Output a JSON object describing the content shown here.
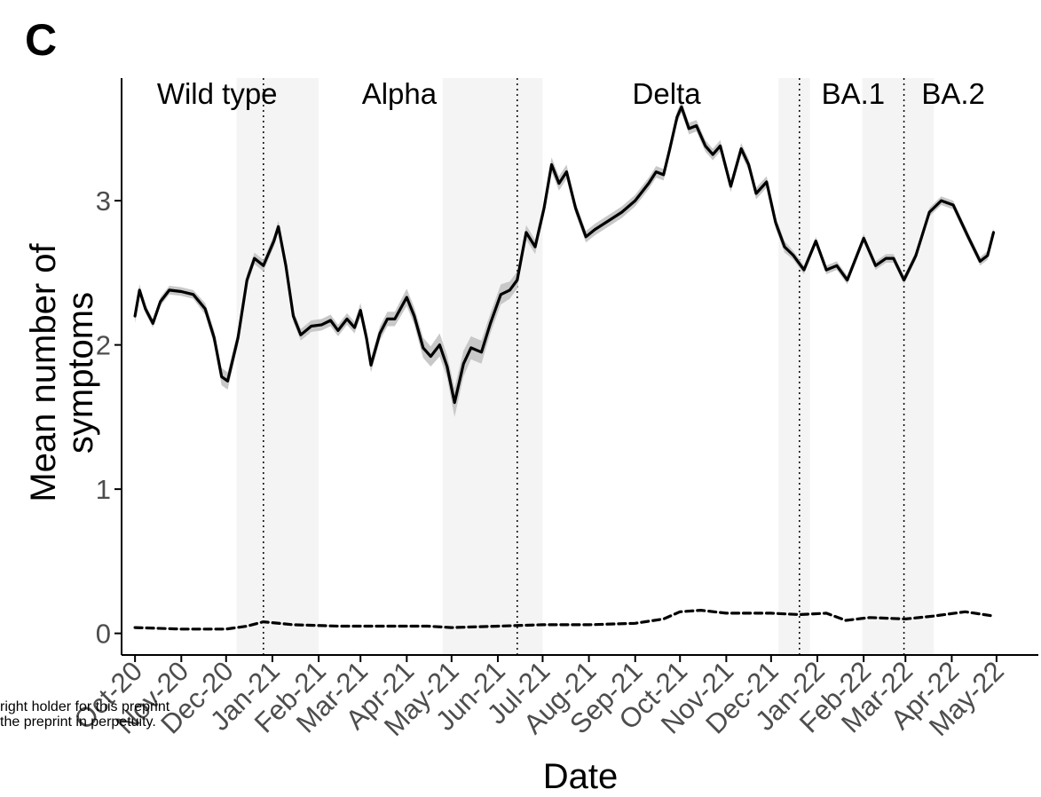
{
  "panel_label": "C",
  "watermark": [
    "right holder for this preprint",
    "the preprint in perpetuity."
  ],
  "chart_data": {
    "type": "line",
    "title": "",
    "xlabel": "Date",
    "ylabel": "Mean number of symptoms",
    "ylabel_lines": [
      "Mean number of",
      "symptoms"
    ],
    "x_axis": "date",
    "xlim": [
      "2020-09-22",
      "2022-05-29"
    ],
    "ylim": [
      -0.15,
      3.85
    ],
    "yticks": [
      0,
      1,
      2,
      3
    ],
    "xticks": [
      {
        "date": "2020-10-01",
        "label": "Oct-20"
      },
      {
        "date": "2020-11-01",
        "label": "Nov-20"
      },
      {
        "date": "2020-12-01",
        "label": "Dec-20"
      },
      {
        "date": "2021-01-01",
        "label": "Jan-21"
      },
      {
        "date": "2021-02-01",
        "label": "Feb-21"
      },
      {
        "date": "2021-03-01",
        "label": "Mar-21"
      },
      {
        "date": "2021-04-01",
        "label": "Apr-21"
      },
      {
        "date": "2021-05-01",
        "label": "May-21"
      },
      {
        "date": "2021-06-01",
        "label": "Jun-21"
      },
      {
        "date": "2021-07-01",
        "label": "Jul-21"
      },
      {
        "date": "2021-08-01",
        "label": "Aug-21"
      },
      {
        "date": "2021-09-01",
        "label": "Sep-21"
      },
      {
        "date": "2021-10-01",
        "label": "Oct-21"
      },
      {
        "date": "2021-11-01",
        "label": "Nov-21"
      },
      {
        "date": "2021-12-01",
        "label": "Dec-21"
      },
      {
        "date": "2022-01-01",
        "label": "Jan-22"
      },
      {
        "date": "2022-02-01",
        "label": "Feb-22"
      },
      {
        "date": "2022-03-01",
        "label": "Mar-22"
      },
      {
        "date": "2022-04-01",
        "label": "Apr-22"
      },
      {
        "date": "2022-05-01",
        "label": "May-22"
      }
    ],
    "grid": false,
    "variant_labels": [
      {
        "label": "Wild type",
        "date": "2020-11-25"
      },
      {
        "label": "Alpha",
        "date": "2021-03-27"
      },
      {
        "label": "Delta",
        "date": "2021-09-22"
      },
      {
        "label": "BA.1",
        "date": "2022-01-25"
      },
      {
        "label": "BA.2",
        "date": "2022-04-02"
      }
    ],
    "shaded_periods": [
      {
        "start": "2020-12-08",
        "end": "2021-02-01"
      },
      {
        "start": "2021-04-25",
        "end": "2021-07-01"
      },
      {
        "start": "2021-12-06",
        "end": "2021-12-27"
      },
      {
        "start": "2022-01-31",
        "end": "2022-03-20"
      }
    ],
    "variant_boundaries": [
      "2020-12-26",
      "2021-06-14",
      "2021-12-20",
      "2022-02-28"
    ],
    "series": [
      {
        "style": "solid",
        "color": "#000000",
        "ribbon_color": "#c8c8c8",
        "points": [
          [
            "2020-10-01",
            2.2,
            0.05
          ],
          [
            "2020-10-04",
            2.38,
            0.04
          ],
          [
            "2020-10-08",
            2.25,
            0.03
          ],
          [
            "2020-10-13",
            2.15,
            0.03
          ],
          [
            "2020-10-18",
            2.3,
            0.03
          ],
          [
            "2020-10-24",
            2.38,
            0.03
          ],
          [
            "2020-11-01",
            2.37,
            0.03
          ],
          [
            "2020-11-09",
            2.35,
            0.03
          ],
          [
            "2020-11-17",
            2.25,
            0.04
          ],
          [
            "2020-11-23",
            2.05,
            0.05
          ],
          [
            "2020-11-28",
            1.78,
            0.06
          ],
          [
            "2020-12-02",
            1.75,
            0.06
          ],
          [
            "2020-12-09",
            2.05,
            0.05
          ],
          [
            "2020-12-15",
            2.45,
            0.04
          ],
          [
            "2020-12-20",
            2.6,
            0.04
          ],
          [
            "2020-12-26",
            2.55,
            0.04
          ],
          [
            "2021-01-02",
            2.72,
            0.04
          ],
          [
            "2021-01-05",
            2.82,
            0.04
          ],
          [
            "2021-01-10",
            2.55,
            0.04
          ],
          [
            "2021-01-15",
            2.2,
            0.04
          ],
          [
            "2021-01-20",
            2.07,
            0.04
          ],
          [
            "2021-01-27",
            2.13,
            0.04
          ],
          [
            "2021-02-03",
            2.14,
            0.04
          ],
          [
            "2021-02-09",
            2.17,
            0.04
          ],
          [
            "2021-02-14",
            2.1,
            0.04
          ],
          [
            "2021-02-20",
            2.18,
            0.04
          ],
          [
            "2021-02-25",
            2.12,
            0.04
          ],
          [
            "2021-03-01",
            2.24,
            0.05
          ],
          [
            "2021-03-05",
            2.05,
            0.05
          ],
          [
            "2021-03-08",
            1.86,
            0.05
          ],
          [
            "2021-03-14",
            2.08,
            0.05
          ],
          [
            "2021-03-19",
            2.18,
            0.05
          ],
          [
            "2021-03-24",
            2.18,
            0.05
          ],
          [
            "2021-04-01",
            2.33,
            0.06
          ],
          [
            "2021-04-06",
            2.2,
            0.06
          ],
          [
            "2021-04-12",
            1.98,
            0.07
          ],
          [
            "2021-04-17",
            1.92,
            0.07
          ],
          [
            "2021-04-23",
            2.0,
            0.08
          ],
          [
            "2021-04-28",
            1.85,
            0.08
          ],
          [
            "2021-05-03",
            1.6,
            0.1
          ],
          [
            "2021-05-09",
            1.87,
            0.09
          ],
          [
            "2021-05-14",
            1.98,
            0.08
          ],
          [
            "2021-05-21",
            1.95,
            0.08
          ],
          [
            "2021-05-27",
            2.15,
            0.07
          ],
          [
            "2021-06-03",
            2.35,
            0.07
          ],
          [
            "2021-06-09",
            2.38,
            0.06
          ],
          [
            "2021-06-14",
            2.45,
            0.06
          ],
          [
            "2021-06-20",
            2.78,
            0.05
          ],
          [
            "2021-06-26",
            2.68,
            0.05
          ],
          [
            "2021-07-02",
            2.95,
            0.05
          ],
          [
            "2021-07-07",
            3.25,
            0.05
          ],
          [
            "2021-07-12",
            3.12,
            0.05
          ],
          [
            "2021-07-17",
            3.2,
            0.05
          ],
          [
            "2021-07-23",
            2.95,
            0.04
          ],
          [
            "2021-07-30",
            2.75,
            0.04
          ],
          [
            "2021-08-05",
            2.8,
            0.04
          ],
          [
            "2021-08-14",
            2.86,
            0.04
          ],
          [
            "2021-08-23",
            2.92,
            0.04
          ],
          [
            "2021-09-01",
            3.0,
            0.04
          ],
          [
            "2021-09-10",
            3.12,
            0.04
          ],
          [
            "2021-09-15",
            3.2,
            0.04
          ],
          [
            "2021-09-20",
            3.18,
            0.04
          ],
          [
            "2021-09-24",
            3.35,
            0.04
          ],
          [
            "2021-09-29",
            3.58,
            0.04
          ],
          [
            "2021-10-02",
            3.65,
            0.04
          ],
          [
            "2021-10-07",
            3.5,
            0.04
          ],
          [
            "2021-10-12",
            3.52,
            0.04
          ],
          [
            "2021-10-18",
            3.38,
            0.04
          ],
          [
            "2021-10-23",
            3.32,
            0.04
          ],
          [
            "2021-10-28",
            3.38,
            0.04
          ],
          [
            "2021-11-04",
            3.1,
            0.04
          ],
          [
            "2021-11-11",
            3.36,
            0.04
          ],
          [
            "2021-11-16",
            3.25,
            0.04
          ],
          [
            "2021-11-21",
            3.05,
            0.04
          ],
          [
            "2021-11-28",
            3.13,
            0.04
          ],
          [
            "2021-12-04",
            2.85,
            0.04
          ],
          [
            "2021-12-10",
            2.68,
            0.04
          ],
          [
            "2021-12-16",
            2.62,
            0.03
          ],
          [
            "2021-12-23",
            2.52,
            0.03
          ],
          [
            "2021-12-31",
            2.72,
            0.03
          ],
          [
            "2022-01-07",
            2.52,
            0.03
          ],
          [
            "2022-01-14",
            2.55,
            0.03
          ],
          [
            "2022-01-21",
            2.45,
            0.03
          ],
          [
            "2022-02-01",
            2.74,
            0.03
          ],
          [
            "2022-02-09",
            2.55,
            0.03
          ],
          [
            "2022-02-16",
            2.6,
            0.03
          ],
          [
            "2022-02-21",
            2.6,
            0.03
          ],
          [
            "2022-02-28",
            2.45,
            0.03
          ],
          [
            "2022-03-08",
            2.62,
            0.03
          ],
          [
            "2022-03-17",
            2.92,
            0.03
          ],
          [
            "2022-03-25",
            3.0,
            0.03
          ],
          [
            "2022-04-02",
            2.97,
            0.03
          ],
          [
            "2022-04-12",
            2.75,
            0.03
          ],
          [
            "2022-04-20",
            2.58,
            0.03
          ],
          [
            "2022-04-25",
            2.62,
            0.03
          ],
          [
            "2022-04-29",
            2.78,
            0.03
          ]
        ]
      },
      {
        "style": "dashed",
        "color": "#000000",
        "points": [
          [
            "2020-10-01",
            0.04
          ],
          [
            "2020-11-01",
            0.03
          ],
          [
            "2020-12-01",
            0.03
          ],
          [
            "2020-12-15",
            0.05
          ],
          [
            "2020-12-26",
            0.08
          ],
          [
            "2021-01-15",
            0.06
          ],
          [
            "2021-02-15",
            0.05
          ],
          [
            "2021-03-15",
            0.05
          ],
          [
            "2021-04-15",
            0.05
          ],
          [
            "2021-05-01",
            0.04
          ],
          [
            "2021-06-01",
            0.05
          ],
          [
            "2021-07-01",
            0.06
          ],
          [
            "2021-08-01",
            0.06
          ],
          [
            "2021-09-01",
            0.07
          ],
          [
            "2021-09-20",
            0.1
          ],
          [
            "2021-10-01",
            0.15
          ],
          [
            "2021-10-15",
            0.16
          ],
          [
            "2021-11-01",
            0.14
          ],
          [
            "2021-12-01",
            0.14
          ],
          [
            "2021-12-20",
            0.13
          ],
          [
            "2022-01-07",
            0.14
          ],
          [
            "2022-01-20",
            0.09
          ],
          [
            "2022-02-05",
            0.11
          ],
          [
            "2022-03-01",
            0.1
          ],
          [
            "2022-03-20",
            0.12
          ],
          [
            "2022-04-10",
            0.15
          ],
          [
            "2022-04-29",
            0.12
          ]
        ]
      }
    ]
  }
}
